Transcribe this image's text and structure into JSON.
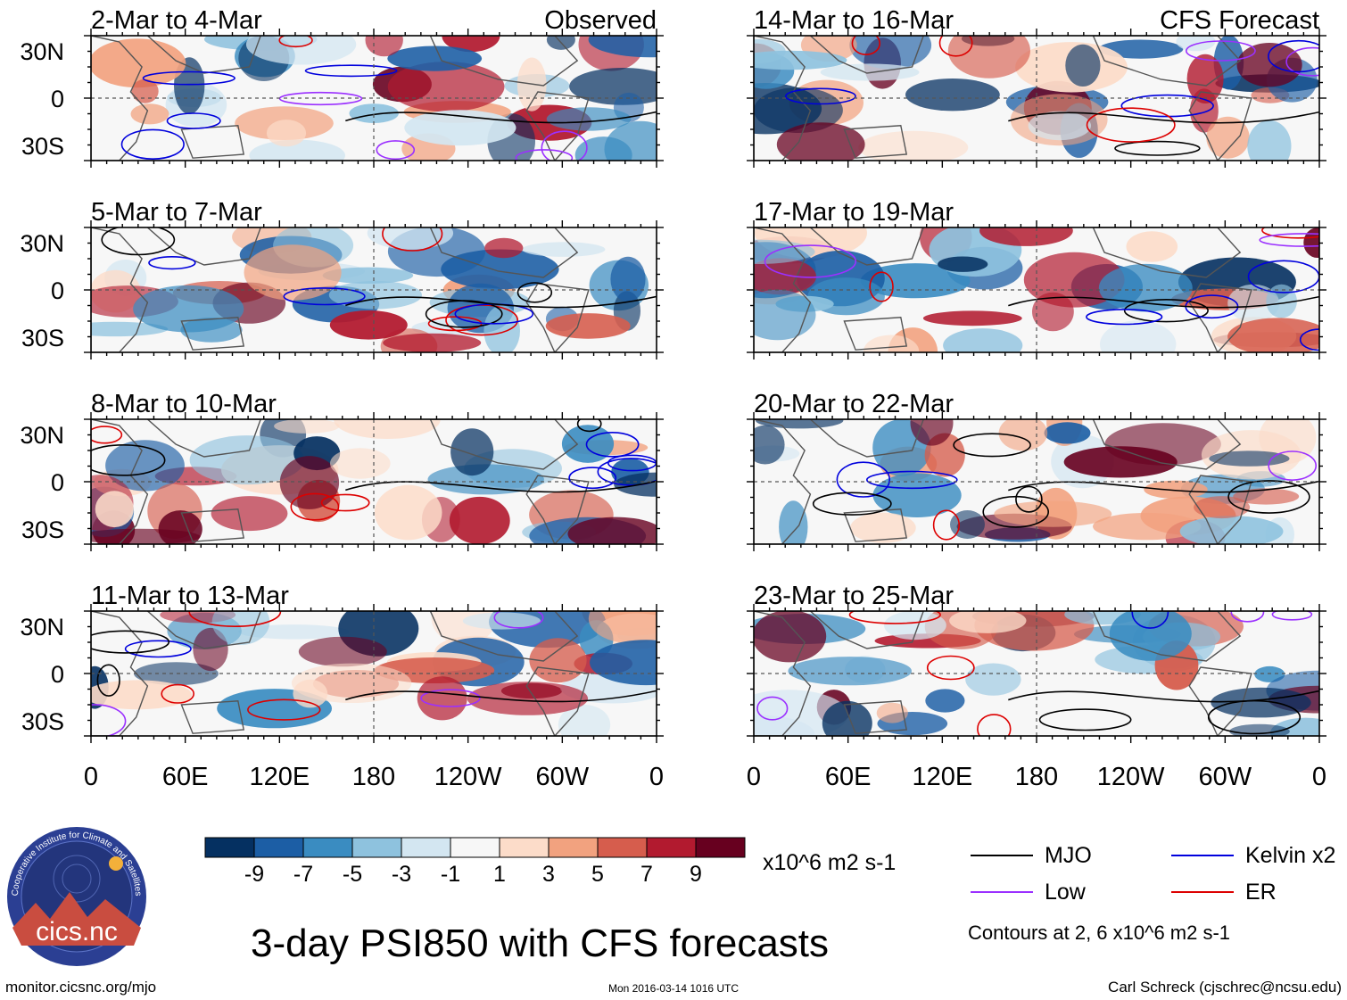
{
  "chart_data": {
    "type": "heatmap",
    "title": "3-day PSI850 with CFS forecasts",
    "variable": "PSI850",
    "units": "x10^6 m2 s-1",
    "column_tags": {
      "observed": "Observed",
      "forecast": "CFS Forecast"
    },
    "panels_observed": [
      {
        "period": "2-Mar to 4-Mar"
      },
      {
        "period": "5-Mar to 7-Mar"
      },
      {
        "period": "8-Mar to 10-Mar"
      },
      {
        "period": "11-Mar to 13-Mar"
      }
    ],
    "panels_forecast": [
      {
        "period": "14-Mar to 16-Mar"
      },
      {
        "period": "17-Mar to 19-Mar"
      },
      {
        "period": "20-Mar to 22-Mar"
      },
      {
        "period": "23-Mar to 25-Mar"
      }
    ],
    "y_ticks": [
      "30N",
      "0",
      "30S"
    ],
    "x_ticks": [
      "0",
      "60E",
      "120E",
      "180",
      "120W",
      "60W",
      "0"
    ],
    "colorbar": {
      "colors": [
        "#053061",
        "#1c5ea5",
        "#3a8cc1",
        "#8ec2de",
        "#d3e6f1",
        "#f7f7f7",
        "#fcdcc9",
        "#f2a27f",
        "#d65d4d",
        "#b21a2f",
        "#67001f"
      ],
      "tick_labels": [
        "-9",
        "-7",
        "-5",
        "-3",
        "-1",
        "1",
        "3",
        "5",
        "7",
        "9"
      ]
    },
    "legend": {
      "items": [
        {
          "label": "MJO",
          "color": "#000000"
        },
        {
          "label": "Kelvin x2",
          "color": "#0000dd"
        },
        {
          "label": "Low",
          "color": "#9b30ff"
        },
        {
          "label": "ER",
          "color": "#dd0000"
        }
      ],
      "note": "Contours at 2, 6 x10^6 m2 s-1"
    }
  },
  "footer": {
    "logo_text": "cics.nc",
    "logo_ring_text": "Cooperative Institute for Climate and Satellites",
    "site": "monitor.cicsnc.org/mjo",
    "timestamp": "Mon 2016-03-14 1016 UTC",
    "credit": "Carl Schreck (cjschrec@ncsu.edu)"
  }
}
